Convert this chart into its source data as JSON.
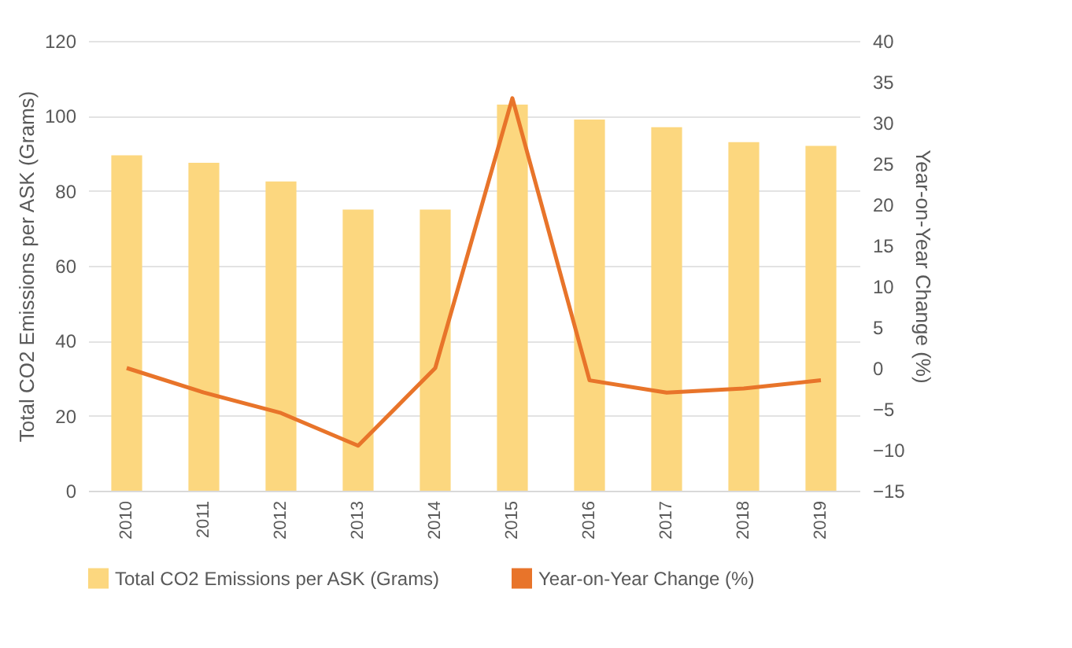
{
  "chart_data": {
    "type": "bar",
    "ylabel": "Total CO2 Emissions per ASK (Grams)",
    "y2label": "Year-on-Year Change (%)",
    "categories": [
      "2010",
      "2011",
      "2012",
      "2013",
      "2014",
      "2015",
      "2016",
      "2017",
      "2018",
      "2019"
    ],
    "series": [
      {
        "name": "Total CO2 Emissions per ASK (Grams)",
        "color": "#fcd77f",
        "values": [
          89.5,
          87.5,
          82.5,
          75,
          75,
          103,
          99,
          97,
          93,
          92
        ]
      },
      {
        "name": "Year-on-Year Change (%)",
        "type": "line",
        "axis": "y2",
        "color": "#e8742a",
        "values": [
          0,
          -3,
          -5.5,
          -9.5,
          0,
          33,
          -1.5,
          -3,
          -2.5,
          -1.5
        ]
      }
    ],
    "ylim": [
      0,
      120
    ],
    "yticks": [
      0,
      20,
      40,
      60,
      80,
      100,
      120
    ],
    "y2lim": [
      -15,
      40
    ],
    "y2ticks": [
      -15,
      -10,
      -5,
      0,
      5,
      10,
      15,
      20,
      25,
      30,
      35,
      40
    ],
    "grid": "y",
    "legend": "bottom"
  }
}
